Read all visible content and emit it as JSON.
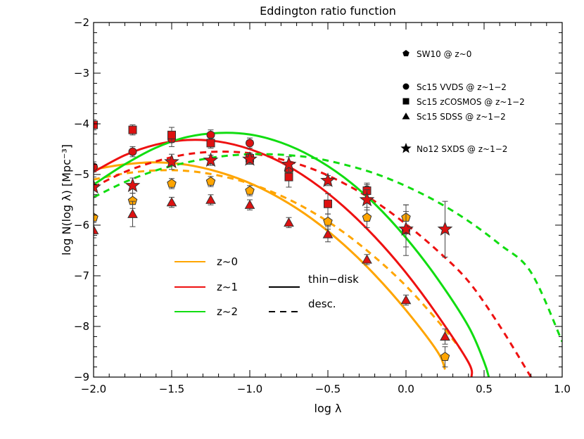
{
  "chart_data": {
    "type": "line",
    "title": "Eddington ratio function",
    "xlabel": "log λ",
    "ylabel": "log N(log λ) [Mpc⁻³]",
    "xlim": [
      -2.0,
      1.0
    ],
    "ylim": [
      -9,
      -2
    ],
    "xticks": [
      -2.0,
      -1.5,
      -1.0,
      -0.5,
      0.0,
      0.5,
      1.0
    ],
    "xtick_labels": [
      "−2.0",
      "−1.5",
      "−1.0",
      "−0.5",
      "0.0",
      "0.5",
      "1.0"
    ],
    "yticks": [
      -9,
      -8,
      -7,
      -6,
      -5,
      -4,
      -3,
      -2
    ],
    "ytick_labels": [
      "−9",
      "−8",
      "−7",
      "−6",
      "−5",
      "−4",
      "−3",
      "−2"
    ],
    "grid": false,
    "colors": {
      "z0": "#ffa500",
      "z1": "#ee1111",
      "z2": "#11dd11",
      "marker_red": "#dd1111",
      "marker_orange": "#ffa500"
    },
    "marker_legend": [
      {
        "marker": "pentagon",
        "label": "SW10 @ z~0"
      },
      {
        "marker": "circle",
        "label": "Sc15 VVDS @ z~1−2"
      },
      {
        "marker": "square",
        "label": "Sc15 zCOSMOS @ z~1−2"
      },
      {
        "marker": "triangle",
        "label": "Sc15 SDSS @ z~1−2"
      },
      {
        "marker": "star",
        "label": "No12 SXDS @ z~1−2"
      }
    ],
    "line_legend": {
      "colors": [
        {
          "label": "z~0",
          "color": "#ffa500"
        },
        {
          "label": "z~1",
          "color": "#ee1111"
        },
        {
          "label": "z~2",
          "color": "#11dd11"
        }
      ],
      "styles": [
        {
          "label": "thin−disk",
          "style": "solid"
        },
        {
          "label": "desc.",
          "style": "dashed"
        }
      ]
    },
    "series": [
      {
        "name": "z~0 thin-disk",
        "color": "#ffa500",
        "style": "solid",
        "x": [
          -2.0,
          -1.8,
          -1.6,
          -1.4,
          -1.2,
          -1.0,
          -0.8,
          -0.6,
          -0.4,
          -0.2,
          0.0,
          0.2,
          0.25
        ],
        "y": [
          -4.9,
          -4.8,
          -4.76,
          -4.81,
          -4.95,
          -5.17,
          -5.48,
          -5.88,
          -6.38,
          -6.98,
          -7.68,
          -8.49,
          -8.85
        ]
      },
      {
        "name": "z~0 desc.",
        "color": "#ffa500",
        "style": "dashed",
        "x": [
          -2.0,
          -1.8,
          -1.6,
          -1.4,
          -1.2,
          -1.0,
          -0.8,
          -0.6,
          -0.4,
          -0.2,
          0.0,
          0.2,
          0.35
        ],
        "y": [
          -5.1,
          -4.98,
          -4.92,
          -4.93,
          -5.02,
          -5.18,
          -5.42,
          -5.74,
          -6.14,
          -6.63,
          -7.2,
          -7.88,
          -8.45
        ]
      },
      {
        "name": "z~1 thin-disk",
        "color": "#ee1111",
        "style": "solid",
        "x": [
          -2.0,
          -1.8,
          -1.6,
          -1.4,
          -1.2,
          -1.0,
          -0.8,
          -0.6,
          -0.4,
          -0.2,
          0.0,
          0.2,
          0.4,
          0.42
        ],
        "y": [
          -4.95,
          -4.62,
          -4.41,
          -4.32,
          -4.35,
          -4.5,
          -4.76,
          -5.14,
          -5.63,
          -6.23,
          -6.94,
          -7.77,
          -8.71,
          -9.0
        ]
      },
      {
        "name": "z~1 desc.",
        "color": "#ee1111",
        "style": "dashed",
        "x": [
          -2.0,
          -1.8,
          -1.6,
          -1.4,
          -1.2,
          -1.0,
          -0.8,
          -0.6,
          -0.4,
          -0.2,
          0.0,
          0.2,
          0.4,
          0.6,
          0.8
        ],
        "y": [
          -5.25,
          -4.95,
          -4.74,
          -4.6,
          -4.55,
          -4.58,
          -4.7,
          -4.89,
          -5.17,
          -5.53,
          -5.98,
          -6.5,
          -7.11,
          -7.99,
          -9.0
        ]
      },
      {
        "name": "z~2 thin-disk",
        "color": "#11dd11",
        "style": "solid",
        "x": [
          -2.0,
          -1.8,
          -1.6,
          -1.4,
          -1.2,
          -1.0,
          -0.8,
          -0.6,
          -0.4,
          -0.2,
          0.0,
          0.2,
          0.4,
          0.5,
          0.53
        ],
        "y": [
          -5.2,
          -4.8,
          -4.47,
          -4.26,
          -4.18,
          -4.21,
          -4.37,
          -4.65,
          -5.05,
          -5.58,
          -6.25,
          -7.05,
          -8.0,
          -8.7,
          -9.0
        ]
      },
      {
        "name": "z~2 desc.",
        "color": "#11dd11",
        "style": "dashed",
        "x": [
          -2.0,
          -1.8,
          -1.6,
          -1.4,
          -1.2,
          -1.0,
          -0.8,
          -0.6,
          -0.4,
          -0.2,
          0.0,
          0.2,
          0.4,
          0.6,
          0.8,
          1.0
        ],
        "y": [
          -5.45,
          -5.15,
          -4.92,
          -4.76,
          -4.65,
          -4.6,
          -4.61,
          -4.67,
          -4.8,
          -4.98,
          -5.23,
          -5.54,
          -5.92,
          -6.38,
          -6.93,
          -8.3
        ]
      }
    ],
    "markers": [
      {
        "marker": "pentagon",
        "color": "#ffa500",
        "points": [
          {
            "x": -2.0,
            "y": -5.85,
            "err": 0.25
          },
          {
            "x": -1.75,
            "y": -5.52,
            "err": 0.15
          },
          {
            "x": -1.5,
            "y": -5.18,
            "err": 0.1
          },
          {
            "x": -1.25,
            "y": -5.14,
            "err": 0.1
          },
          {
            "x": -1.0,
            "y": -5.32,
            "err": 0.1
          },
          {
            "x": -0.75,
            "y": -4.95,
            "err": 0.1
          },
          {
            "x": -0.5,
            "y": -5.93,
            "err": 0.15
          },
          {
            "x": -0.25,
            "y": -5.85,
            "err": 0.2
          },
          {
            "x": 0.0,
            "y": -5.85,
            "err": 0.25
          },
          {
            "x": 0.25,
            "y": -8.6,
            "err": 0.2
          }
        ]
      },
      {
        "marker": "circle",
        "color": "#dd1111",
        "points": [
          {
            "x": -2.0,
            "y": -4.85,
            "err": 0.1
          },
          {
            "x": -1.75,
            "y": -4.55,
            "err": 0.1
          },
          {
            "x": -1.5,
            "y": -4.3,
            "err": 0.15
          },
          {
            "x": -1.25,
            "y": -4.22,
            "err": 0.1
          },
          {
            "x": -1.0,
            "y": -4.38,
            "err": 0.1
          },
          {
            "x": -0.75,
            "y": -4.9,
            "err": 0.15
          },
          {
            "x": -0.25,
            "y": -5.3,
            "err": 0.1
          },
          {
            "x": 0.0,
            "y": -6.1,
            "err": 0.5
          }
        ]
      },
      {
        "marker": "square",
        "color": "#dd1111",
        "points": [
          {
            "x": -2.0,
            "y": -4.02,
            "err": 0.1
          },
          {
            "x": -1.75,
            "y": -4.12,
            "err": 0.1
          },
          {
            "x": -1.5,
            "y": -4.22,
            "err": 0.15
          },
          {
            "x": -1.25,
            "y": -4.38,
            "err": 0.1
          },
          {
            "x": -1.0,
            "y": -4.68,
            "err": 0.1
          },
          {
            "x": -0.75,
            "y": -5.05,
            "err": 0.2
          },
          {
            "x": -0.5,
            "y": -5.58,
            "err": 0.2
          },
          {
            "x": -0.25,
            "y": -5.32,
            "err": 0.15
          }
        ]
      },
      {
        "marker": "triangle",
        "color": "#dd1111",
        "points": [
          {
            "x": -2.0,
            "y": -6.1,
            "err": 0.15
          },
          {
            "x": -1.75,
            "y": -5.78,
            "err": 0.25
          },
          {
            "x": -1.5,
            "y": -5.55,
            "err": 0.1
          },
          {
            "x": -1.25,
            "y": -5.5,
            "err": 0.1
          },
          {
            "x": -1.0,
            "y": -5.6,
            "err": 0.1
          },
          {
            "x": -0.75,
            "y": -5.95,
            "err": 0.1
          },
          {
            "x": -0.5,
            "y": -6.18,
            "err": 0.15
          },
          {
            "x": -0.25,
            "y": -6.68,
            "err": 0.1
          },
          {
            "x": 0.0,
            "y": -7.48,
            "err": 0.1
          },
          {
            "x": 0.25,
            "y": -8.2,
            "err": 0.15
          }
        ]
      },
      {
        "marker": "star",
        "color": "#dd1111",
        "points": [
          {
            "x": -2.0,
            "y": -5.25,
            "err": 0.2
          },
          {
            "x": -1.75,
            "y": -5.22,
            "err": 0.15
          },
          {
            "x": -1.5,
            "y": -4.75,
            "err": 0.15
          },
          {
            "x": -1.25,
            "y": -4.72,
            "err": 0.1
          },
          {
            "x": -1.0,
            "y": -4.7,
            "err": 0.1
          },
          {
            "x": -0.75,
            "y": -4.8,
            "err": 0.15
          },
          {
            "x": -0.5,
            "y": -5.12,
            "err": 0.1
          },
          {
            "x": -0.25,
            "y": -5.5,
            "err": 0.2
          },
          {
            "x": 0.0,
            "y": -6.08,
            "err": 0.35
          },
          {
            "x": 0.25,
            "y": -6.08,
            "err": 0.55
          }
        ]
      }
    ]
  }
}
